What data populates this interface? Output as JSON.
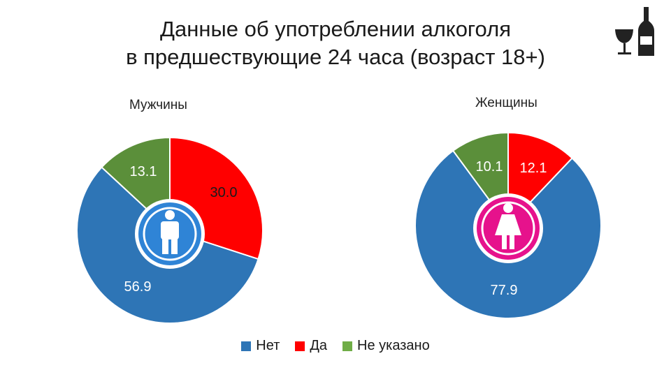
{
  "title_line1": "Данные об употреблении алкоголя",
  "title_line2": "в предшествующие 24 часа (возраст 18+)",
  "chart_data": {
    "type": "pie",
    "title": "Данные об употреблении алкоголя в предшествующие 24 часа (возраст 18+)",
    "categories": [
      "Нет",
      "Да",
      "Не указано"
    ],
    "colors": [
      "#2e75b6",
      "#ff0000",
      "#5b8f3a"
    ],
    "legend_colors": [
      "#2e75b6",
      "#ff0000",
      "#70ad47"
    ],
    "legend_position": "bottom",
    "charts": [
      {
        "name": "Мужчины",
        "values": [
          56.9,
          30.0,
          13.1
        ],
        "labels": [
          "56.9",
          "30.0",
          "13.1"
        ]
      },
      {
        "name": "Женщины",
        "values": [
          77.9,
          12.1,
          10.1
        ],
        "labels": [
          "77.9",
          "12.1",
          "10.1"
        ]
      }
    ]
  },
  "icons": {
    "men_center": "man-icon",
    "women_center": "woman-icon",
    "decoration": "wine-bottle-icon"
  }
}
